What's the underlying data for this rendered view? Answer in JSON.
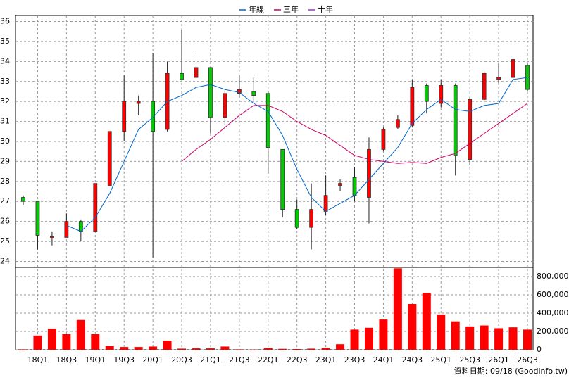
{
  "chart_data": {
    "type": "candlestick",
    "categories": [
      null,
      "18Q1",
      null,
      "18Q3",
      null,
      "19Q1",
      null,
      "19Q3",
      null,
      "20Q1",
      null,
      "20Q3",
      null,
      "21Q1",
      null,
      "21Q3",
      null,
      "22Q1",
      null,
      "22Q3",
      null,
      "23Q1",
      null,
      "23Q3",
      null,
      "24Q1",
      null,
      "24Q3",
      null,
      "25Q1",
      null,
      "25Q3",
      null,
      "26Q1",
      null,
      "26Q3"
    ],
    "open": [
      27.2,
      27.0,
      25.2,
      25.2,
      26.0,
      25.5,
      27.8,
      30.5,
      31.9,
      32.0,
      30.6,
      33.4,
      33.2,
      33.7,
      31.2,
      32.4,
      32.5,
      32.4,
      29.6,
      26.6,
      25.7,
      26.5,
      27.8,
      28.2,
      27.2,
      29.6,
      30.7,
      30.8,
      32.8,
      31.9,
      32.8,
      29.1,
      32.1,
      33.1,
      33.2,
      33.8
    ],
    "high": [
      27.3,
      27.0,
      25.5,
      26.4,
      26.1,
      27.9,
      30.5,
      33.3,
      32.3,
      34.4,
      34.0,
      35.6,
      34.5,
      33.7,
      32.5,
      33.3,
      33.2,
      32.5,
      29.6,
      27.1,
      27.9,
      28.3,
      28.1,
      28.7,
      30.2,
      30.7,
      31.3,
      33.1,
      32.9,
      33.1,
      32.9,
      32.2,
      33.5,
      33.9,
      34.1,
      33.9
    ],
    "low": [
      26.8,
      24.6,
      24.8,
      25.2,
      25.0,
      25.5,
      27.8,
      30.0,
      31.3,
      24.2,
      30.5,
      33.1,
      33.0,
      30.4,
      30.8,
      32.2,
      32.0,
      28.4,
      26.2,
      25.6,
      24.6,
      26.3,
      27.5,
      27.0,
      25.9,
      29.5,
      30.6,
      30.7,
      31.4,
      31.7,
      28.3,
      28.8,
      32.0,
      32.9,
      32.7,
      32.5
    ],
    "close": [
      27.0,
      25.3,
      25.25,
      26.0,
      25.5,
      27.9,
      30.5,
      32.0,
      32.0,
      30.5,
      33.4,
      33.1,
      33.7,
      31.2,
      32.4,
      32.6,
      32.3,
      29.7,
      26.6,
      25.7,
      26.6,
      27.3,
      27.9,
      27.3,
      29.6,
      30.6,
      31.1,
      32.7,
      32.0,
      32.8,
      29.3,
      32.1,
      33.4,
      33.2,
      34.1,
      32.6
    ],
    "up_color": "#ff0000",
    "down_color": "#00cc00",
    "series": [
      {
        "name": "年線",
        "color": "#0066cc",
        "values": [
          null,
          null,
          null,
          25.8,
          25.5,
          26.2,
          27.4,
          29.0,
          30.6,
          31.2,
          32.0,
          32.3,
          32.7,
          32.85,
          32.6,
          32.45,
          31.9,
          31.5,
          30.3,
          28.6,
          27.2,
          26.5,
          26.9,
          27.3,
          28.1,
          28.9,
          29.7,
          30.9,
          31.6,
          32.1,
          31.6,
          31.5,
          31.8,
          31.9,
          33.1,
          33.2
        ]
      },
      {
        "name": "三年",
        "color": "#cc0066",
        "values": [
          null,
          null,
          null,
          null,
          null,
          null,
          null,
          null,
          null,
          null,
          null,
          29.0,
          29.6,
          30.1,
          30.7,
          31.3,
          31.8,
          31.8,
          31.5,
          31.0,
          30.6,
          30.3,
          29.8,
          29.3,
          29.1,
          29.0,
          28.9,
          28.95,
          28.9,
          29.2,
          29.4,
          29.9,
          30.4,
          30.9,
          31.4,
          31.9
        ]
      },
      {
        "name": "十年",
        "color": "#9933cc",
        "values": [
          null,
          null,
          null,
          null,
          null,
          null,
          null,
          null,
          null,
          null,
          null,
          null,
          null,
          null,
          null,
          null,
          null,
          null,
          null,
          null,
          null,
          null,
          null,
          null,
          null,
          null,
          null,
          null,
          null,
          null,
          null,
          null,
          null,
          null,
          null,
          null
        ]
      }
    ],
    "ylim": [
      23.7,
      36.3
    ],
    "yticks": [
      24,
      25,
      26,
      27,
      28,
      29,
      30,
      31,
      32,
      33,
      34,
      35,
      36
    ],
    "volume": {
      "color": "#ff0000",
      "values": [
        5000,
        155000,
        230000,
        170000,
        325000,
        170000,
        40000,
        30000,
        30000,
        35000,
        100000,
        12000,
        15000,
        15000,
        35000,
        5000,
        3000,
        18000,
        10000,
        8000,
        12000,
        20000,
        60000,
        220000,
        240000,
        330000,
        890000,
        500000,
        620000,
        385000,
        310000,
        255000,
        265000,
        235000,
        245000,
        220000
      ],
      "ylim": [
        0,
        900000
      ],
      "yticks": [
        0,
        {
          "value": 200000,
          "label": "200,000"
        },
        {
          "value": 400000,
          "label": "400,000"
        },
        {
          "value": 600000,
          "label": "600,000"
        },
        {
          "value": 800000,
          "label": "800,000"
        }
      ]
    },
    "footer": "資料日期: 09/18 (Goodinfo.tw)"
  }
}
